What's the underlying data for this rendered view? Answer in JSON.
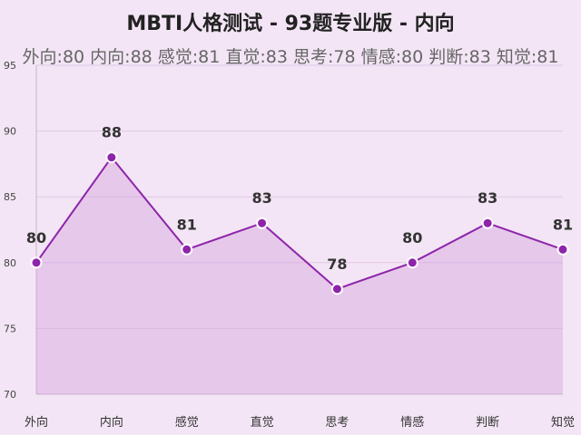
{
  "chart_data": {
    "type": "area",
    "title": "MBTI人格测试 - 93题专业版 - 内向",
    "subtitle": "外向:80 内向:88 感觉:81 直觉:83 思考:78 情感:80 判断:83 知觉:81",
    "categories": [
      "外向",
      "内向",
      "感觉",
      "直觉",
      "思考",
      "情感",
      "判断",
      "知觉"
    ],
    "values": [
      80,
      88,
      81,
      83,
      78,
      80,
      83,
      81
    ],
    "ylim": [
      70,
      95
    ],
    "yticks": [
      70,
      75,
      80,
      85,
      90,
      95
    ],
    "xlabel": "",
    "ylabel": "",
    "grid": true,
    "colors": {
      "line": "#8e24aa",
      "fill": "#ce93d8",
      "point": "#8e24aa",
      "grid": "#e1c8e6",
      "background": "#f3e5f5"
    }
  }
}
